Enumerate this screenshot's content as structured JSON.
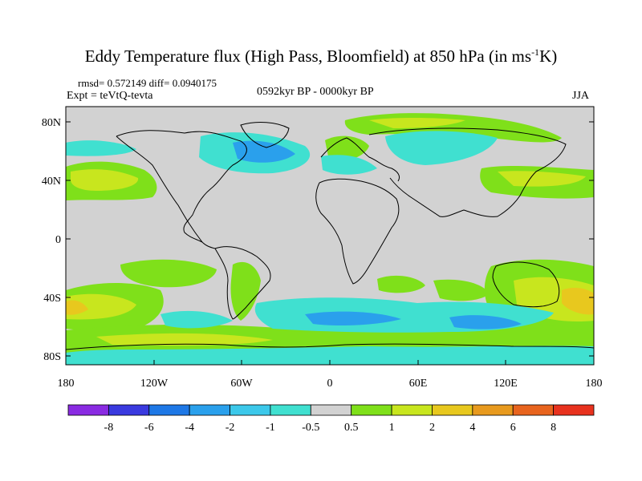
{
  "title": {
    "main": "Eddy Temperature flux (High Pass, Bloomfield) at 850 hPa (in ms",
    "sup": "-1",
    "end": "K)"
  },
  "stats": "rmsd= 0.572149 diff= 0.0940175",
  "experiment": "Expt = teVtQ-tevta",
  "period": "0592kyr BP - 0000kyr BP",
  "season": "JJA",
  "lat_ticks": [
    "80N",
    "40N",
    "0",
    "40S",
    "80S"
  ],
  "lon_ticks": [
    "180",
    "120W",
    "60W",
    "0",
    "60E",
    "120E",
    "180"
  ],
  "colorbar": {
    "labels": [
      "-8",
      "-6",
      "-4",
      "-2",
      "-1",
      "-0.5",
      "0.5",
      "1",
      "2",
      "4",
      "6",
      "8"
    ],
    "colors": [
      "#8a2be2",
      "#3a3adf",
      "#1e78e6",
      "#2aa0ec",
      "#3cc8ea",
      "#40e0d0",
      "#d2d2d2",
      "#7fe01a",
      "#c8e61e",
      "#e8c81e",
      "#e89a1e",
      "#e8641e",
      "#e8321e"
    ]
  },
  "map_colors": {
    "background": "#d2d2d2",
    "positive_1": "#7fe01a",
    "positive_2": "#c8e61e",
    "positive_3": "#e8c81e",
    "negative_1": "#40e0d0",
    "negative_2": "#2aa0ec"
  }
}
